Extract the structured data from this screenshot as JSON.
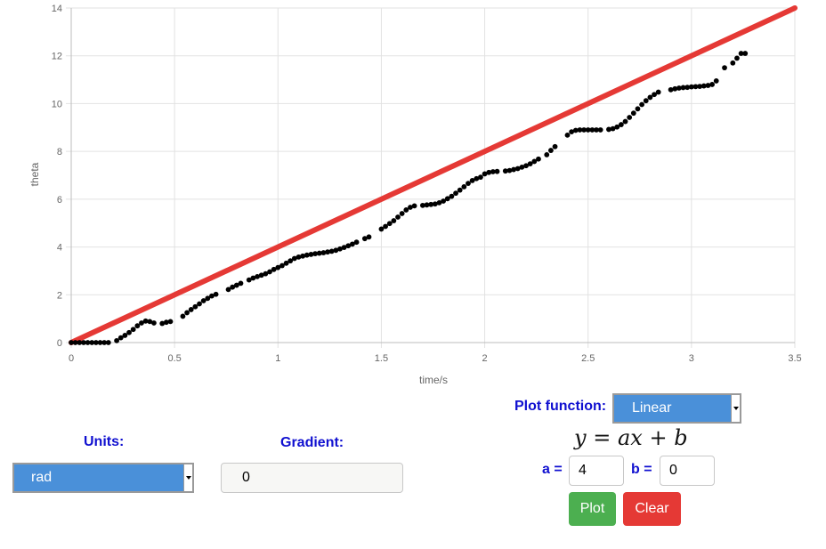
{
  "chart_data": {
    "type": "scatter",
    "xlabel": "time/s",
    "ylabel": "theta",
    "xlim": [
      0,
      3.5
    ],
    "ylim": [
      0,
      14
    ],
    "xticks": [
      "0",
      "0.5",
      "1",
      "1.5",
      "2",
      "2.5",
      "3",
      "3.5"
    ],
    "yticks": [
      "0",
      "2",
      "4",
      "6",
      "8",
      "10",
      "12",
      "14"
    ],
    "grid": true,
    "series": [
      {
        "kind": "line",
        "color": "#e53935",
        "function": {
          "a": 4,
          "b": 0
        },
        "x_range": [
          0,
          3.5
        ]
      },
      {
        "kind": "scatter",
        "color": "#000000",
        "x": [
          0.0,
          0.02,
          0.04,
          0.06,
          0.08,
          0.1,
          0.12,
          0.14,
          0.16,
          0.18,
          0.22,
          0.24,
          0.26,
          0.28,
          0.3,
          0.32,
          0.34,
          0.36,
          0.38,
          0.4,
          0.44,
          0.46,
          0.48,
          0.54,
          0.56,
          0.58,
          0.6,
          0.62,
          0.64,
          0.66,
          0.68,
          0.7,
          0.76,
          0.78,
          0.8,
          0.82,
          0.86,
          0.88,
          0.9,
          0.92,
          0.94,
          0.96,
          0.98,
          1.0,
          1.02,
          1.04,
          1.06,
          1.08,
          1.1,
          1.12,
          1.14,
          1.16,
          1.18,
          1.2,
          1.22,
          1.24,
          1.26,
          1.28,
          1.3,
          1.32,
          1.34,
          1.36,
          1.38,
          1.42,
          1.44,
          1.5,
          1.52,
          1.54,
          1.56,
          1.58,
          1.6,
          1.62,
          1.64,
          1.66,
          1.7,
          1.72,
          1.74,
          1.76,
          1.78,
          1.8,
          1.82,
          1.84,
          1.86,
          1.88,
          1.9,
          1.92,
          1.94,
          1.96,
          1.98,
          2.0,
          2.02,
          2.04,
          2.06,
          2.1,
          2.12,
          2.14,
          2.16,
          2.18,
          2.2,
          2.22,
          2.24,
          2.26,
          2.3,
          2.32,
          2.34,
          2.4,
          2.42,
          2.44,
          2.46,
          2.48,
          2.5,
          2.52,
          2.54,
          2.56,
          2.6,
          2.62,
          2.64,
          2.66,
          2.68,
          2.7,
          2.72,
          2.74,
          2.76,
          2.78,
          2.8,
          2.82,
          2.84,
          2.9,
          2.92,
          2.94,
          2.96,
          2.98,
          3.0,
          3.02,
          3.04,
          3.06,
          3.08,
          3.1,
          3.12,
          3.16,
          3.2,
          3.22,
          3.24,
          3.26
        ],
        "y": [
          0.0,
          0.0,
          0.0,
          0.0,
          0.0,
          0.0,
          0.0,
          0.0,
          0.0,
          0.0,
          0.08,
          0.2,
          0.3,
          0.42,
          0.55,
          0.7,
          0.82,
          0.9,
          0.88,
          0.82,
          0.8,
          0.85,
          0.88,
          1.1,
          1.25,
          1.38,
          1.5,
          1.62,
          1.75,
          1.85,
          1.95,
          2.02,
          2.22,
          2.32,
          2.4,
          2.48,
          2.62,
          2.7,
          2.76,
          2.82,
          2.88,
          2.96,
          3.06,
          3.14,
          3.22,
          3.32,
          3.42,
          3.52,
          3.58,
          3.62,
          3.66,
          3.69,
          3.72,
          3.74,
          3.76,
          3.79,
          3.82,
          3.86,
          3.92,
          3.98,
          4.05,
          4.12,
          4.2,
          4.35,
          4.42,
          4.75,
          4.86,
          4.98,
          5.1,
          5.25,
          5.4,
          5.55,
          5.66,
          5.72,
          5.74,
          5.76,
          5.78,
          5.8,
          5.85,
          5.92,
          6.02,
          6.12,
          6.25,
          6.38,
          6.52,
          6.66,
          6.78,
          6.86,
          6.92,
          7.06,
          7.12,
          7.15,
          7.16,
          7.18,
          7.2,
          7.24,
          7.28,
          7.34,
          7.4,
          7.48,
          7.58,
          7.68,
          7.86,
          8.04,
          8.2,
          8.68,
          8.82,
          8.88,
          8.9,
          8.9,
          8.9,
          8.9,
          8.9,
          8.9,
          8.92,
          8.95,
          9.02,
          9.12,
          9.25,
          9.42,
          9.6,
          9.78,
          9.96,
          10.12,
          10.26,
          10.38,
          10.48,
          10.58,
          10.62,
          10.65,
          10.67,
          10.68,
          10.7,
          10.71,
          10.72,
          10.74,
          10.76,
          10.8,
          10.95,
          11.5,
          11.7,
          11.9,
          12.1,
          12.1
        ]
      }
    ]
  },
  "controls": {
    "units_label": "Units:",
    "units_value": "rad",
    "gradient_label": "Gradient:",
    "gradient_value": "0",
    "plot_function_label": "Plot function:",
    "plot_function_value": "Linear",
    "formula": {
      "y": "y",
      "eq": "=",
      "a": "a",
      "x": "x",
      "plus": "+",
      "b": "b"
    },
    "a_label": "a =",
    "a_value": "4",
    "b_label": "b =",
    "b_value": "0",
    "plot_button": "Plot",
    "clear_button": "Clear"
  },
  "colors": {
    "label_blue": "#1010d0",
    "select_blue": "#4a90d9",
    "plot_green": "#4caf50",
    "clear_red": "#e53935"
  }
}
